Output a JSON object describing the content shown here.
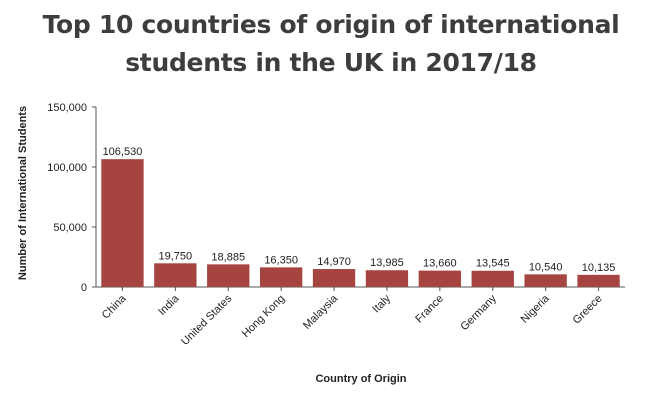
{
  "title_lines": [
    "Top 10 countries of origin of international",
    "students in the UK in 2017/18"
  ],
  "colors": {
    "bar": "#a64440",
    "axis": "#555555",
    "text": "#222222",
    "title": "#3d3d3d"
  },
  "chart_data": {
    "type": "bar",
    "title": "Top 10 countries of origin of international students in the UK in 2017/18",
    "xlabel": "Country of Origin",
    "ylabel": "Number of International Students",
    "ylim": [
      0,
      150000
    ],
    "yticks": [
      0,
      50000,
      100000,
      150000
    ],
    "ytick_labels": [
      "0",
      "50,000",
      "100,000",
      "150,000"
    ],
    "grid": false,
    "categories": [
      "China",
      "India",
      "United States",
      "Hong Kong",
      "Malaysia",
      "Italy",
      "France",
      "Germany",
      "Nigeria",
      "Greece"
    ],
    "values": [
      106530,
      19750,
      18885,
      16350,
      14970,
      13985,
      13660,
      13545,
      10540,
      10135
    ],
    "value_labels": [
      "106,530",
      "19,750",
      "18,885",
      "16,350",
      "14,970",
      "13,985",
      "13,660",
      "13,545",
      "10,540",
      "10,135"
    ]
  }
}
